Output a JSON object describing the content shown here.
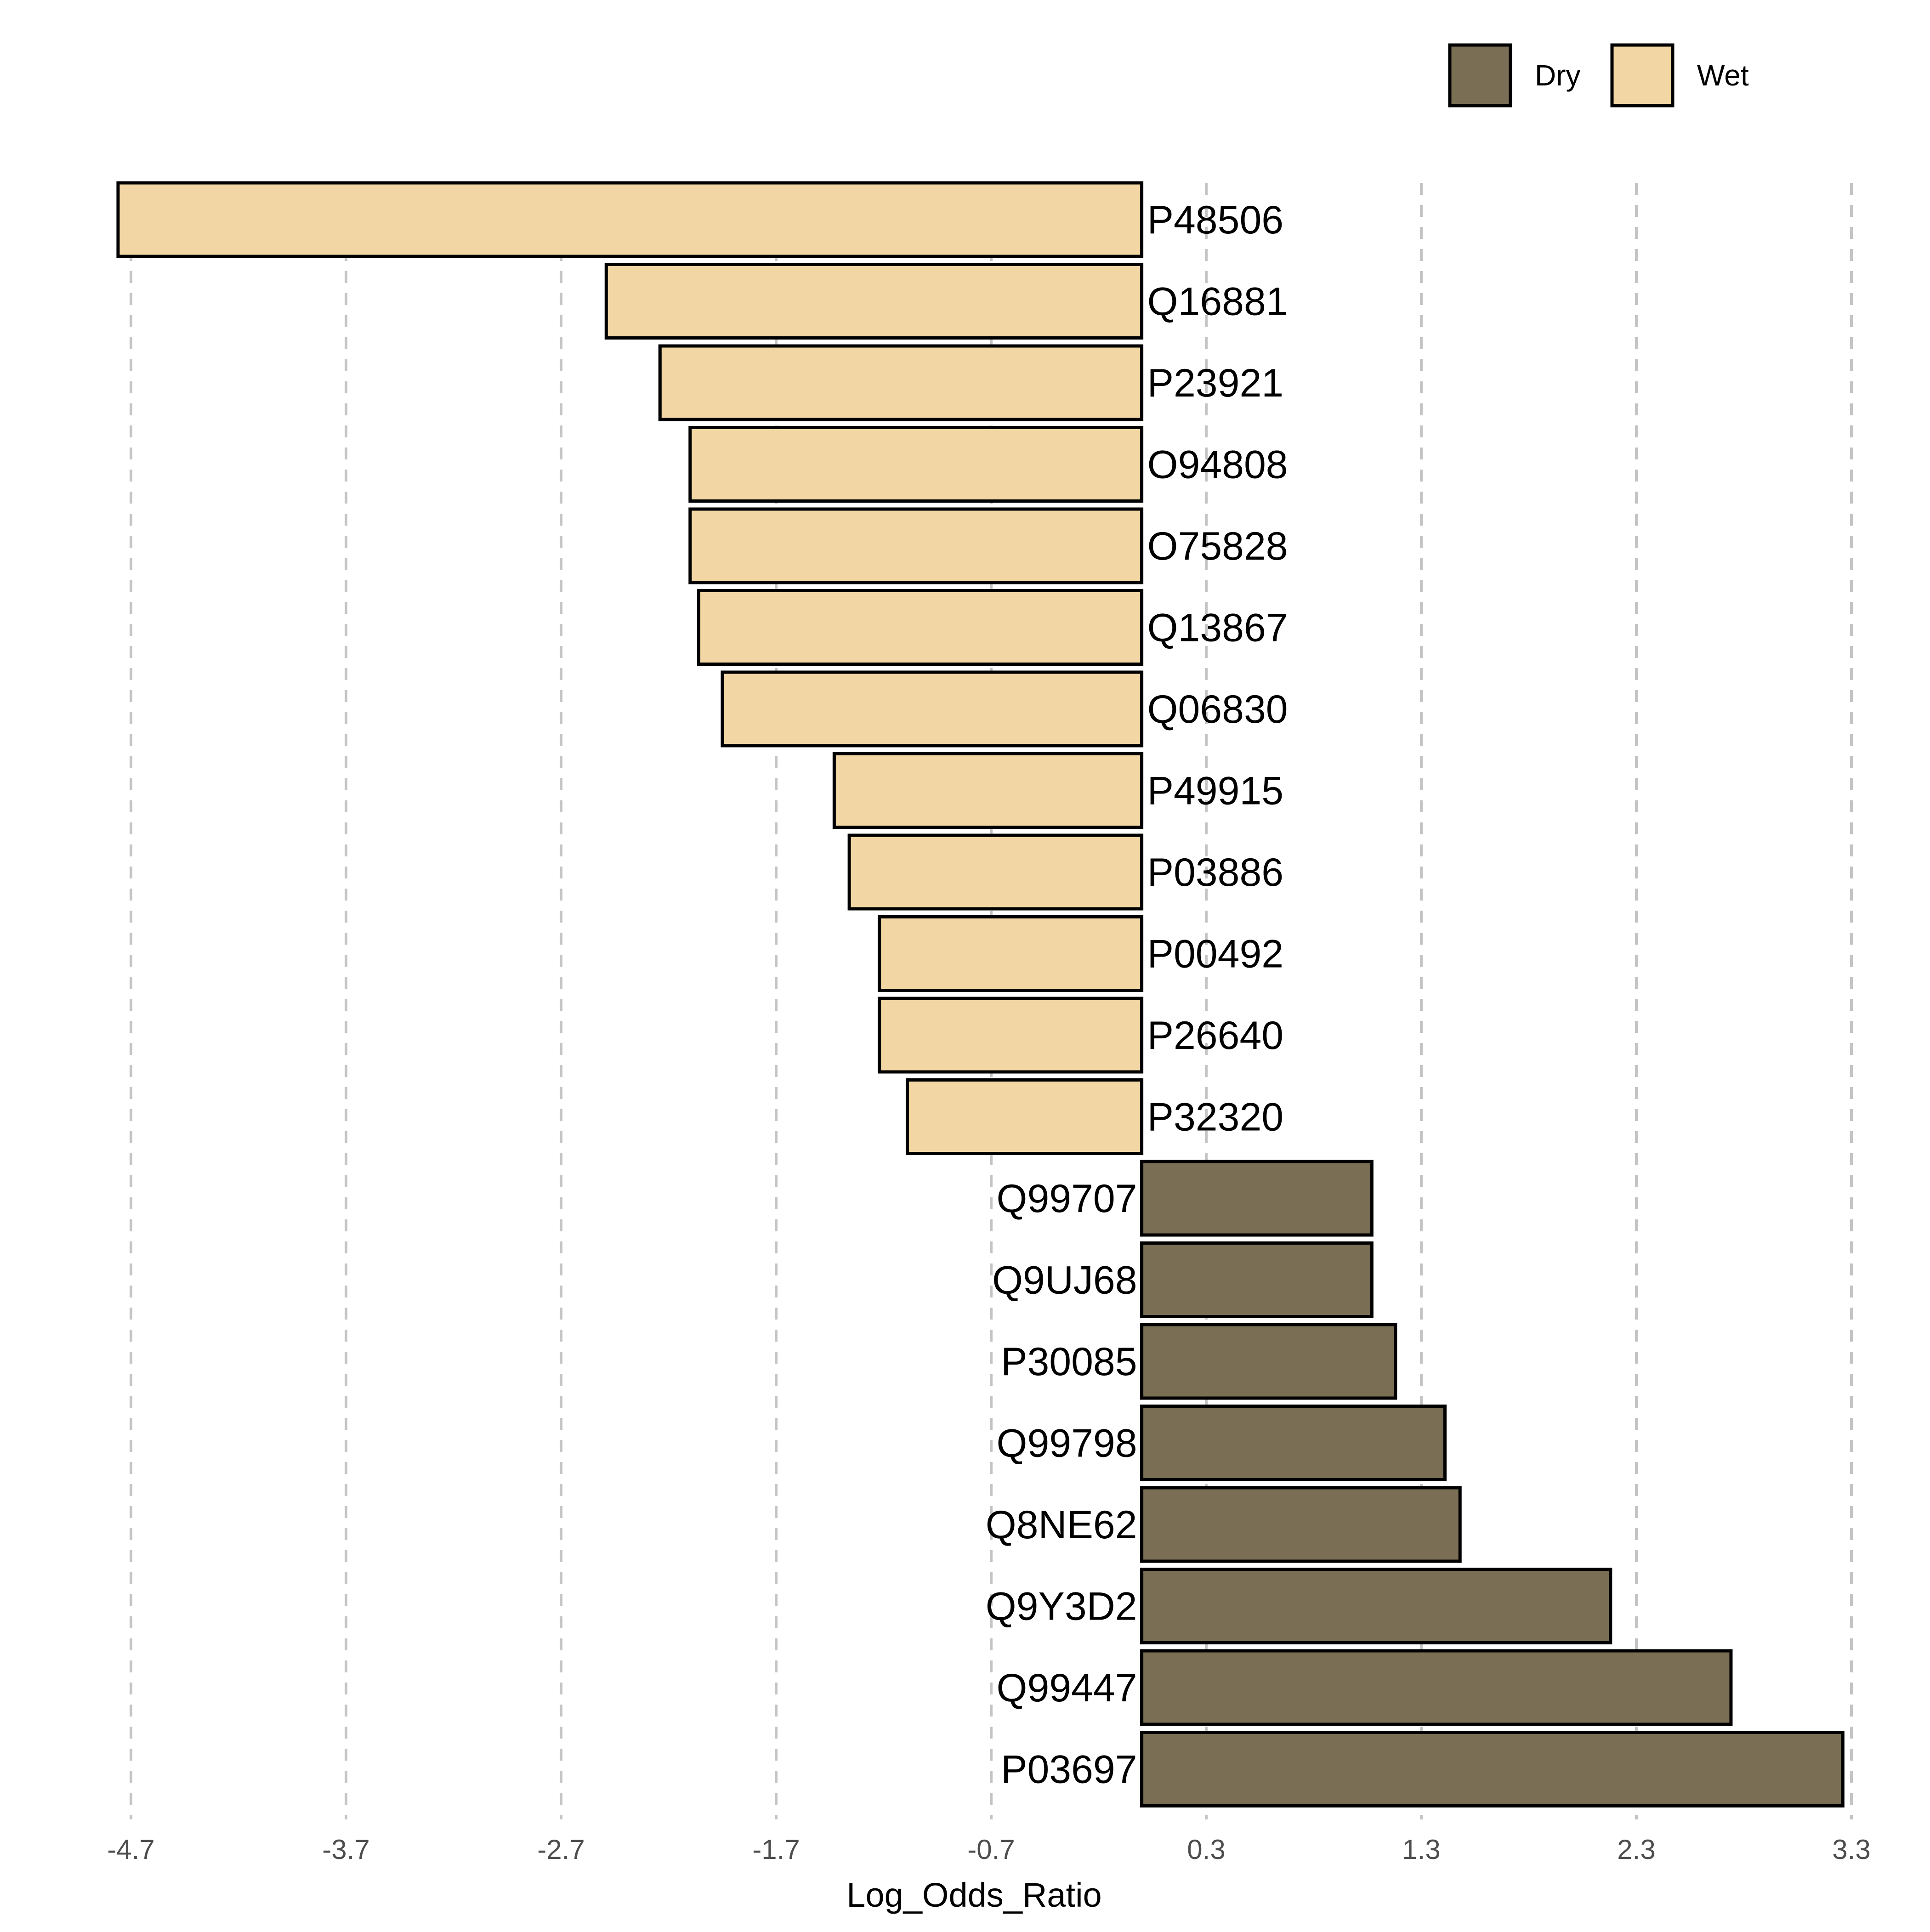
{
  "chart_data": {
    "type": "bar",
    "orientation": "horizontal",
    "xlabel": "Log_Odds_Ratio",
    "ylabel": "",
    "xlim": [
      -4.77,
      3.3
    ],
    "xticks": [
      -4.7,
      -3.7,
      -2.7,
      -1.7,
      -0.7,
      0.3,
      1.3,
      2.3,
      3.3
    ],
    "xtick_labels": [
      "-4.7",
      "-3.7",
      "-2.7",
      "-1.7",
      "-0.7",
      "0.3",
      "1.3",
      "2.3",
      "3.3"
    ],
    "grid": "vertical dashed",
    "legend": {
      "placement": "top-right",
      "entries": [
        {
          "label": "Dry",
          "color": "#7a6e55"
        },
        {
          "label": "Wet",
          "color": "#f2d7a5"
        }
      ]
    },
    "bars": [
      {
        "label": "P48506",
        "value": -4.76,
        "group": "Wet"
      },
      {
        "label": "Q16881",
        "value": -2.49,
        "group": "Wet"
      },
      {
        "label": "P23921",
        "value": -2.24,
        "group": "Wet"
      },
      {
        "label": "O94808",
        "value": -2.1,
        "group": "Wet"
      },
      {
        "label": "O75828",
        "value": -2.1,
        "group": "Wet"
      },
      {
        "label": "Q13867",
        "value": -2.06,
        "group": "Wet"
      },
      {
        "label": "Q06830",
        "value": -1.95,
        "group": "Wet"
      },
      {
        "label": "P49915",
        "value": -1.43,
        "group": "Wet"
      },
      {
        "label": "P03886",
        "value": -1.36,
        "group": "Wet"
      },
      {
        "label": "P00492",
        "value": -1.22,
        "group": "Wet"
      },
      {
        "label": "P26640",
        "value": -1.22,
        "group": "Wet"
      },
      {
        "label": "P32320",
        "value": -1.09,
        "group": "Wet"
      },
      {
        "label": "Q99707",
        "value": 1.07,
        "group": "Dry"
      },
      {
        "label": "Q9UJ68",
        "value": 1.07,
        "group": "Dry"
      },
      {
        "label": "P30085",
        "value": 1.18,
        "group": "Dry"
      },
      {
        "label": "Q99798",
        "value": 1.41,
        "group": "Dry"
      },
      {
        "label": "Q8NE62",
        "value": 1.48,
        "group": "Dry"
      },
      {
        "label": "Q9Y3D2",
        "value": 2.18,
        "group": "Dry"
      },
      {
        "label": "Q99447",
        "value": 2.74,
        "group": "Dry"
      },
      {
        "label": "P03697",
        "value": 3.26,
        "group": "Dry"
      }
    ]
  }
}
